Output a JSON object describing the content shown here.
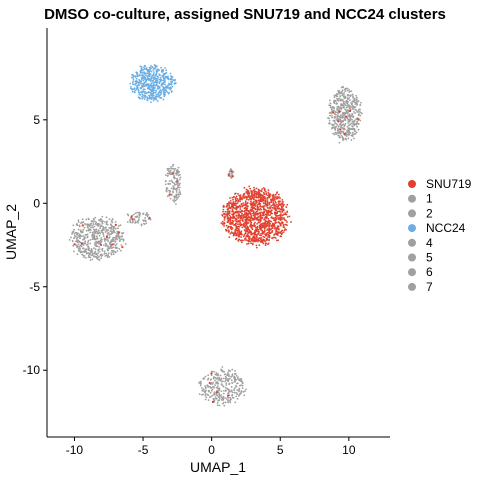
{
  "chart_data": {
    "type": "scatter",
    "title": "DMSO co-culture, assigned SNU719 and NCC24 clusters",
    "xlabel": "UMAP_1",
    "ylabel": "UMAP_2",
    "xlim": [
      -12,
      13
    ],
    "ylim": [
      -14,
      10.5
    ],
    "x_ticks": [
      -10,
      -5,
      0,
      5,
      10
    ],
    "y_ticks": [
      -10,
      -5,
      0,
      5
    ],
    "grid": false,
    "legend_position": "right",
    "legend": [
      {
        "label": "SNU719",
        "color": "#E2402F"
      },
      {
        "label": "1",
        "color": "#A0A0A0"
      },
      {
        "label": "2",
        "color": "#A0A0A0"
      },
      {
        "label": "NCC24",
        "color": "#6AAEE5"
      },
      {
        "label": "4",
        "color": "#A0A0A0"
      },
      {
        "label": "5",
        "color": "#A0A0A0"
      },
      {
        "label": "6",
        "color": "#A0A0A0"
      },
      {
        "label": "7",
        "color": "#A0A0A0"
      }
    ],
    "series": [
      {
        "name": "SNU719",
        "color": "#E2402F",
        "clusters": [
          {
            "center": [
              3.2,
              -0.8
            ],
            "spread": [
              2.4,
              1.7
            ],
            "n": 1300
          }
        ]
      },
      {
        "name": "NCC24",
        "color": "#6AAEE5",
        "clusters": [
          {
            "center": [
              -4.3,
              7.2
            ],
            "spread": [
              1.6,
              1.1
            ],
            "n": 500
          }
        ]
      },
      {
        "name": "1",
        "color": "#A0A0A0",
        "clusters": [
          {
            "center": [
              -8.3,
              -2.1
            ],
            "spread": [
              2.0,
              1.3
            ],
            "n": 520
          }
        ]
      },
      {
        "name": "2",
        "color": "#A0A0A0",
        "clusters": [
          {
            "center": [
              9.7,
              5.3
            ],
            "spread": [
              1.2,
              1.6
            ],
            "n": 480
          }
        ]
      },
      {
        "name": "4",
        "color": "#A0A0A0",
        "clusters": [
          {
            "center": [
              0.8,
              -11.0
            ],
            "spread": [
              1.7,
              1.1
            ],
            "n": 300
          }
        ]
      },
      {
        "name": "5",
        "color": "#A0A0A0",
        "clusters": [
          {
            "center": [
              -2.8,
              1.2
            ],
            "spread": [
              0.6,
              1.2
            ],
            "n": 140
          }
        ]
      },
      {
        "name": "6",
        "color": "#A0A0A0",
        "clusters": [
          {
            "center": [
              -5.3,
              -0.9
            ],
            "spread": [
              1.0,
              0.4
            ],
            "n": 60
          }
        ]
      },
      {
        "name": "7",
        "color": "#A0A0A0",
        "clusters": [
          {
            "center": [
              1.4,
              1.8
            ],
            "spread": [
              0.2,
              0.3
            ],
            "n": 30
          }
        ]
      }
    ]
  }
}
